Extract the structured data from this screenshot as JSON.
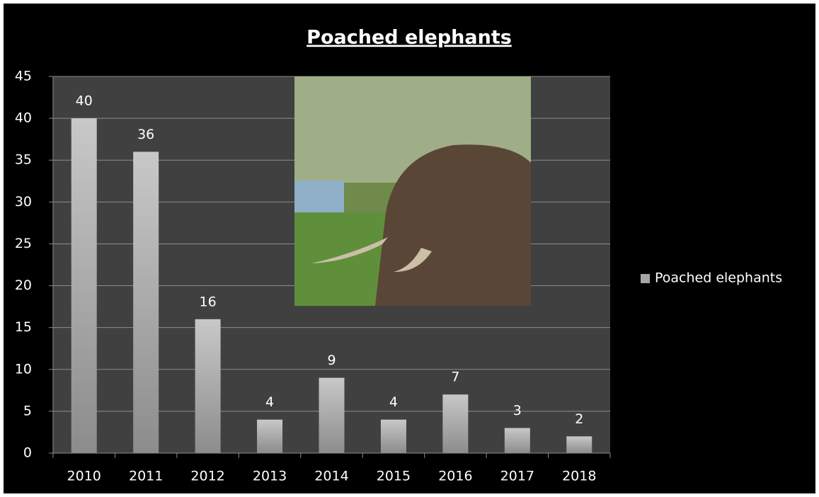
{
  "chart_data": {
    "type": "bar",
    "title": "Poached elephants",
    "categories": [
      "2010",
      "2011",
      "2012",
      "2013",
      "2014",
      "2015",
      "2016",
      "2017",
      "2018"
    ],
    "series": [
      {
        "name": "Poached elephants",
        "color": "#a6a6a6",
        "values": [
          40,
          36,
          16,
          4,
          9,
          4,
          7,
          3,
          2
        ]
      }
    ],
    "ylim": [
      0,
      45
    ],
    "yticks": [
      0,
      5,
      10,
      15,
      20,
      25,
      30,
      35,
      40,
      45
    ],
    "grid": true,
    "legend": "right"
  }
}
